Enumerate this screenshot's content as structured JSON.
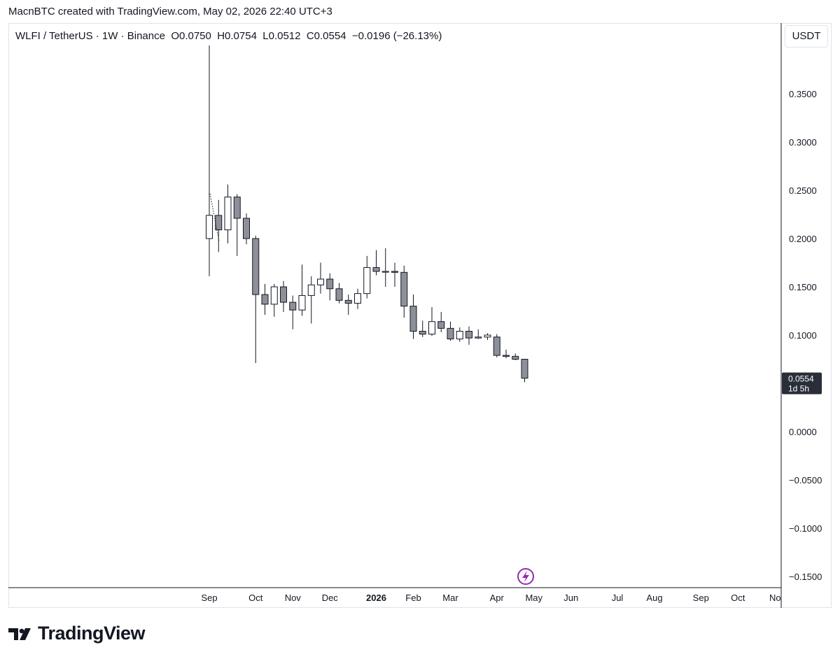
{
  "caption": "MacnBTC created with TradingView.com, May 02, 2026 22:40 UTC+3",
  "header": {
    "symbol": "WLFI / TetherUS · 1W · Binance",
    "open": "O0.0750",
    "high": "H0.0754",
    "low": "L0.0512",
    "close": "C0.0554",
    "change": "−0.0196 (−26.13%)"
  },
  "currency_button": "USDT",
  "last_price": {
    "value": "0.0554",
    "countdown": "1d 5h",
    "color": "#2a2e39"
  },
  "brand": {
    "name": "TradingView"
  },
  "colors": {
    "up_body": "#ffffff",
    "down_body": "#8e9099",
    "wick": "#131722",
    "event_icon": "#9c27b0"
  },
  "chart_data": {
    "type": "candlestick",
    "interval": "1W",
    "y_ticks": [
      "0.3500",
      "0.3000",
      "0.2500",
      "0.2000",
      "0.1500",
      "0.1000",
      "0.0000",
      "−0.0500",
      "−0.1000",
      "−0.1500"
    ],
    "y_tick_values": [
      0.35,
      0.3,
      0.25,
      0.2,
      0.15,
      0.1,
      0.0,
      -0.05,
      -0.1,
      -0.15
    ],
    "ylim": [
      -0.157,
      0.405
    ],
    "x_ticks": [
      {
        "label": "Sep",
        "week": 0,
        "bold": false
      },
      {
        "label": "Oct",
        "week": 5,
        "bold": false
      },
      {
        "label": "Nov",
        "week": 9,
        "bold": false
      },
      {
        "label": "Dec",
        "week": 13,
        "bold": false
      },
      {
        "label": "2026",
        "week": 18,
        "bold": true
      },
      {
        "label": "Feb",
        "week": 22,
        "bold": false
      },
      {
        "label": "Mar",
        "week": 26,
        "bold": false
      },
      {
        "label": "Apr",
        "week": 31,
        "bold": false
      },
      {
        "label": "May",
        "week": 35,
        "bold": false
      },
      {
        "label": "Jun",
        "week": 39,
        "bold": false
      },
      {
        "label": "Jul",
        "week": 44,
        "bold": false
      },
      {
        "label": "Aug",
        "week": 48,
        "bold": false
      },
      {
        "label": "Sep",
        "week": 53,
        "bold": false
      },
      {
        "label": "Oct",
        "week": 57,
        "bold": false
      },
      {
        "label": "No",
        "week": 61,
        "bold": false
      }
    ],
    "candles": [
      {
        "o": 0.2,
        "h": 0.4,
        "l": 0.161,
        "c": 0.224
      },
      {
        "o": 0.224,
        "h": 0.24,
        "l": 0.186,
        "c": 0.209
      },
      {
        "o": 0.209,
        "h": 0.256,
        "l": 0.195,
        "c": 0.243
      },
      {
        "o": 0.243,
        "h": 0.246,
        "l": 0.182,
        "c": 0.221
      },
      {
        "o": 0.221,
        "h": 0.226,
        "l": 0.194,
        "c": 0.2
      },
      {
        "o": 0.2,
        "h": 0.203,
        "l": 0.071,
        "c": 0.142
      },
      {
        "o": 0.142,
        "h": 0.153,
        "l": 0.121,
        "c": 0.132
      },
      {
        "o": 0.132,
        "h": 0.153,
        "l": 0.119,
        "c": 0.15
      },
      {
        "o": 0.15,
        "h": 0.156,
        "l": 0.124,
        "c": 0.134
      },
      {
        "o": 0.134,
        "h": 0.141,
        "l": 0.106,
        "c": 0.126
      },
      {
        "o": 0.126,
        "h": 0.173,
        "l": 0.12,
        "c": 0.141
      },
      {
        "o": 0.141,
        "h": 0.161,
        "l": 0.112,
        "c": 0.152
      },
      {
        "o": 0.152,
        "h": 0.175,
        "l": 0.143,
        "c": 0.158
      },
      {
        "o": 0.158,
        "h": 0.164,
        "l": 0.136,
        "c": 0.148
      },
      {
        "o": 0.148,
        "h": 0.154,
        "l": 0.133,
        "c": 0.136
      },
      {
        "o": 0.136,
        "h": 0.142,
        "l": 0.121,
        "c": 0.133
      },
      {
        "o": 0.133,
        "h": 0.148,
        "l": 0.127,
        "c": 0.143
      },
      {
        "o": 0.143,
        "h": 0.182,
        "l": 0.138,
        "c": 0.17
      },
      {
        "o": 0.17,
        "h": 0.188,
        "l": 0.162,
        "c": 0.166
      },
      {
        "o": 0.166,
        "h": 0.19,
        "l": 0.15,
        "c": 0.166
      },
      {
        "o": 0.166,
        "h": 0.175,
        "l": 0.15,
        "c": 0.165
      },
      {
        "o": 0.165,
        "h": 0.172,
        "l": 0.118,
        "c": 0.13
      },
      {
        "o": 0.13,
        "h": 0.142,
        "l": 0.096,
        "c": 0.104
      },
      {
        "o": 0.104,
        "h": 0.115,
        "l": 0.098,
        "c": 0.101
      },
      {
        "o": 0.101,
        "h": 0.129,
        "l": 0.099,
        "c": 0.114
      },
      {
        "o": 0.114,
        "h": 0.124,
        "l": 0.103,
        "c": 0.107
      },
      {
        "o": 0.107,
        "h": 0.114,
        "l": 0.094,
        "c": 0.096
      },
      {
        "o": 0.096,
        "h": 0.108,
        "l": 0.093,
        "c": 0.104
      },
      {
        "o": 0.104,
        "h": 0.109,
        "l": 0.09,
        "c": 0.097
      },
      {
        "o": 0.097,
        "h": 0.106,
        "l": 0.096,
        "c": 0.098
      },
      {
        "o": 0.098,
        "h": 0.102,
        "l": 0.095,
        "c": 0.1
      },
      {
        "o": 0.098,
        "h": 0.101,
        "l": 0.077,
        "c": 0.079
      },
      {
        "o": 0.079,
        "h": 0.085,
        "l": 0.076,
        "c": 0.078
      },
      {
        "o": 0.078,
        "h": 0.081,
        "l": 0.074,
        "c": 0.075
      },
      {
        "o": 0.075,
        "h": 0.0754,
        "l": 0.0512,
        "c": 0.0554
      }
    ]
  }
}
